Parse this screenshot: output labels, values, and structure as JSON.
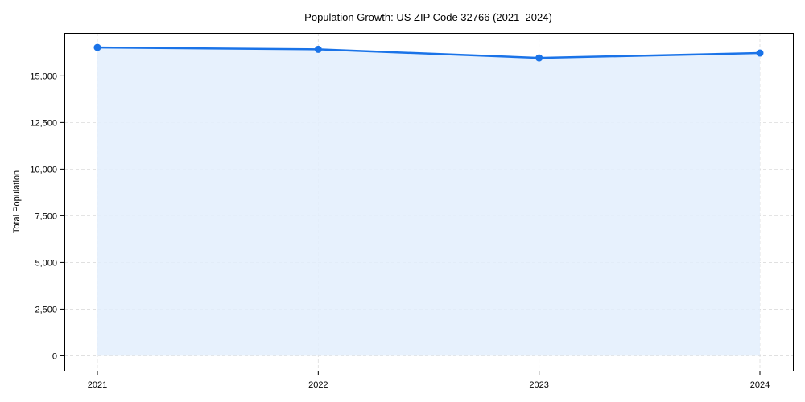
{
  "chart_data": {
    "type": "area",
    "title": "Population Growth: US ZIP Code 32766 (2021–2024)",
    "xlabel": "",
    "ylabel": "Total Population",
    "categories": [
      "2021",
      "2022",
      "2023",
      "2024"
    ],
    "series": [
      {
        "name": "Total Population",
        "values": [
          16520,
          16420,
          15960,
          16220
        ],
        "color": "#1a73e8"
      }
    ],
    "yticks": [
      0,
      2500,
      5000,
      7500,
      10000,
      12500,
      15000
    ],
    "ytick_labels": [
      "0",
      "2,500",
      "5,000",
      "7,500",
      "10,000",
      "12,500",
      "15,000"
    ],
    "ylim": [
      -800,
      17300
    ],
    "grid": true,
    "legend": null,
    "fill_color": "#e3eefd",
    "line_color": "#1a73e8"
  }
}
